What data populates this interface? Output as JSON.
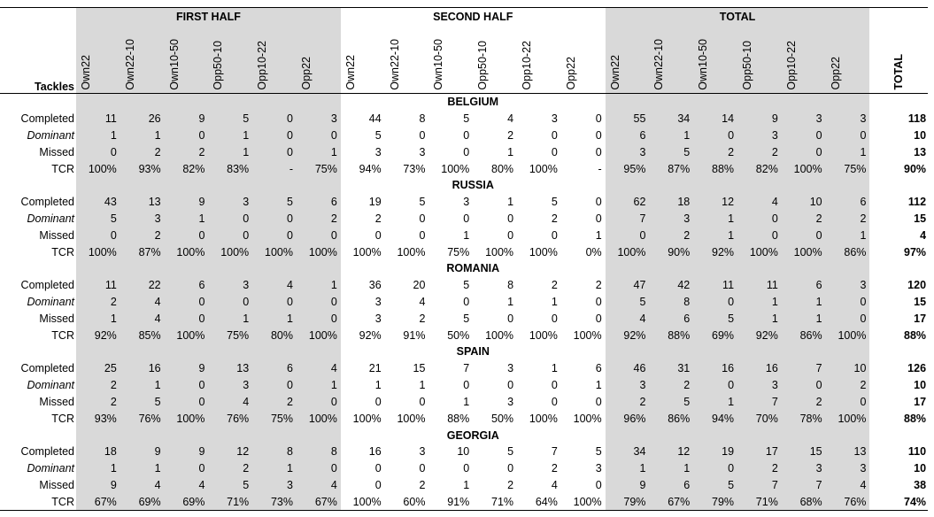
{
  "header": {
    "corner_label": "Tackles",
    "groups": [
      "FIRST HALF",
      "SECOND HALF",
      "TOTAL"
    ],
    "zones": [
      "Own22",
      "Own22-10",
      "Own10-50",
      "Opp50-10",
      "Opp10-22",
      "Opp22"
    ],
    "total_label": "TOTAL"
  },
  "row_labels": [
    "Completed",
    "Dominant",
    "Missed",
    "TCR"
  ],
  "teams": [
    {
      "name": "BELGIUM",
      "rows": [
        [
          "11",
          "26",
          "9",
          "5",
          "0",
          "3",
          "44",
          "8",
          "5",
          "4",
          "3",
          "0",
          "55",
          "34",
          "14",
          "9",
          "3",
          "3",
          "118"
        ],
        [
          "1",
          "1",
          "0",
          "1",
          "0",
          "0",
          "5",
          "0",
          "0",
          "2",
          "0",
          "0",
          "6",
          "1",
          "0",
          "3",
          "0",
          "0",
          "10"
        ],
        [
          "0",
          "2",
          "2",
          "1",
          "0",
          "1",
          "3",
          "3",
          "0",
          "1",
          "0",
          "0",
          "3",
          "5",
          "2",
          "2",
          "0",
          "1",
          "13"
        ],
        [
          "100%",
          "93%",
          "82%",
          "83%",
          "-",
          "75%",
          "94%",
          "73%",
          "100%",
          "80%",
          "100%",
          "-",
          "95%",
          "87%",
          "88%",
          "82%",
          "100%",
          "75%",
          "90%"
        ]
      ]
    },
    {
      "name": "RUSSIA",
      "rows": [
        [
          "43",
          "13",
          "9",
          "3",
          "5",
          "6",
          "19",
          "5",
          "3",
          "1",
          "5",
          "0",
          "62",
          "18",
          "12",
          "4",
          "10",
          "6",
          "112"
        ],
        [
          "5",
          "3",
          "1",
          "0",
          "0",
          "2",
          "2",
          "0",
          "0",
          "0",
          "2",
          "0",
          "7",
          "3",
          "1",
          "0",
          "2",
          "2",
          "15"
        ],
        [
          "0",
          "2",
          "0",
          "0",
          "0",
          "0",
          "0",
          "0",
          "1",
          "0",
          "0",
          "1",
          "0",
          "2",
          "1",
          "0",
          "0",
          "1",
          "4"
        ],
        [
          "100%",
          "87%",
          "100%",
          "100%",
          "100%",
          "100%",
          "100%",
          "100%",
          "75%",
          "100%",
          "100%",
          "0%",
          "100%",
          "90%",
          "92%",
          "100%",
          "100%",
          "86%",
          "97%"
        ]
      ]
    },
    {
      "name": "ROMANIA",
      "rows": [
        [
          "11",
          "22",
          "6",
          "3",
          "4",
          "1",
          "36",
          "20",
          "5",
          "8",
          "2",
          "2",
          "47",
          "42",
          "11",
          "11",
          "6",
          "3",
          "120"
        ],
        [
          "2",
          "4",
          "0",
          "0",
          "0",
          "0",
          "3",
          "4",
          "0",
          "1",
          "1",
          "0",
          "5",
          "8",
          "0",
          "1",
          "1",
          "0",
          "15"
        ],
        [
          "1",
          "4",
          "0",
          "1",
          "1",
          "0",
          "3",
          "2",
          "5",
          "0",
          "0",
          "0",
          "4",
          "6",
          "5",
          "1",
          "1",
          "0",
          "17"
        ],
        [
          "92%",
          "85%",
          "100%",
          "75%",
          "80%",
          "100%",
          "92%",
          "91%",
          "50%",
          "100%",
          "100%",
          "100%",
          "92%",
          "88%",
          "69%",
          "92%",
          "86%",
          "100%",
          "88%"
        ]
      ]
    },
    {
      "name": "SPAIN",
      "rows": [
        [
          "25",
          "16",
          "9",
          "13",
          "6",
          "4",
          "21",
          "15",
          "7",
          "3",
          "1",
          "6",
          "46",
          "31",
          "16",
          "16",
          "7",
          "10",
          "126"
        ],
        [
          "2",
          "1",
          "0",
          "3",
          "0",
          "1",
          "1",
          "1",
          "0",
          "0",
          "0",
          "1",
          "3",
          "2",
          "0",
          "3",
          "0",
          "2",
          "10"
        ],
        [
          "2",
          "5",
          "0",
          "4",
          "2",
          "0",
          "0",
          "0",
          "1",
          "3",
          "0",
          "0",
          "2",
          "5",
          "1",
          "7",
          "2",
          "0",
          "17"
        ],
        [
          "93%",
          "76%",
          "100%",
          "76%",
          "75%",
          "100%",
          "100%",
          "100%",
          "88%",
          "50%",
          "100%",
          "100%",
          "96%",
          "86%",
          "94%",
          "70%",
          "78%",
          "100%",
          "88%"
        ]
      ]
    },
    {
      "name": "GEORGIA",
      "rows": [
        [
          "18",
          "9",
          "9",
          "12",
          "8",
          "8",
          "16",
          "3",
          "10",
          "5",
          "7",
          "5",
          "34",
          "12",
          "19",
          "17",
          "15",
          "13",
          "110"
        ],
        [
          "1",
          "1",
          "0",
          "2",
          "1",
          "0",
          "0",
          "0",
          "0",
          "0",
          "2",
          "3",
          "1",
          "1",
          "0",
          "2",
          "3",
          "3",
          "10"
        ],
        [
          "9",
          "4",
          "4",
          "5",
          "3",
          "4",
          "0",
          "2",
          "1",
          "2",
          "4",
          "0",
          "9",
          "6",
          "5",
          "7",
          "7",
          "4",
          "38"
        ],
        [
          "67%",
          "69%",
          "69%",
          "71%",
          "73%",
          "67%",
          "100%",
          "60%",
          "91%",
          "71%",
          "64%",
          "100%",
          "79%",
          "67%",
          "79%",
          "71%",
          "68%",
          "76%",
          "74%"
        ]
      ]
    }
  ]
}
